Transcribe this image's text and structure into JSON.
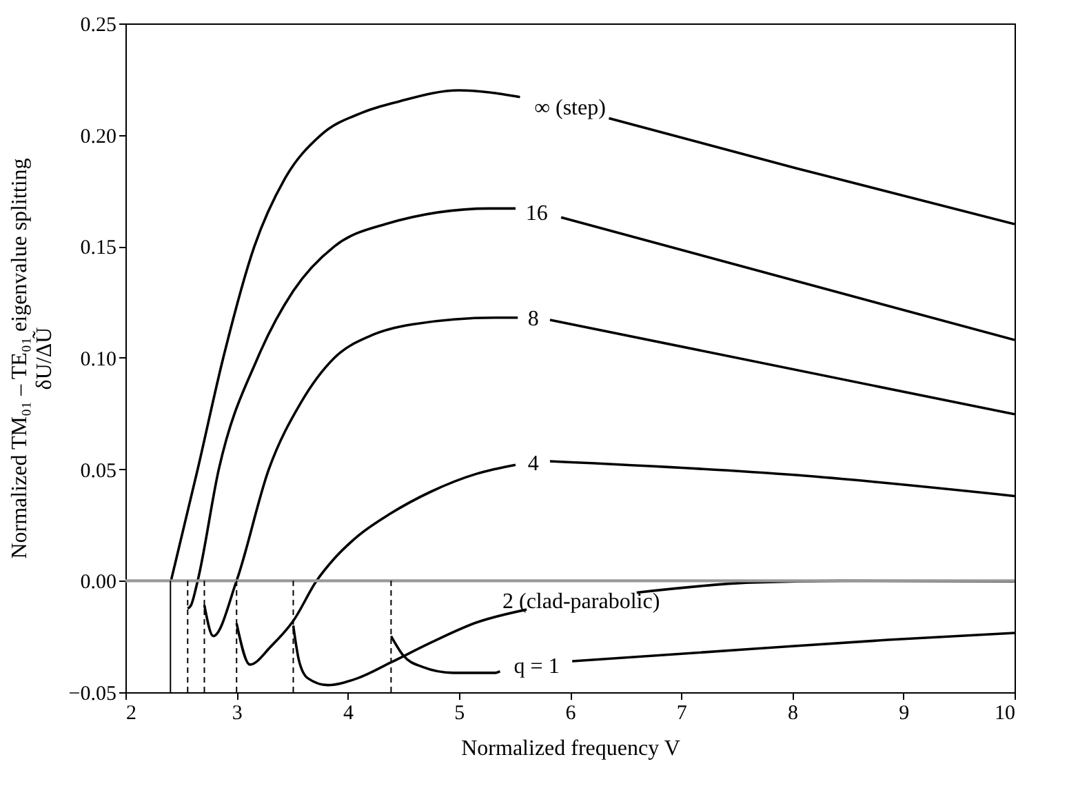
{
  "chart_data": {
    "type": "line",
    "xlabel": "Normalized frequency V",
    "ylabel": "Normalized  TM₀₁ – TE₀₁ eigenvalue splitting\nδU/ΔŨ",
    "xlim": [
      2,
      10
    ],
    "xticks": [
      2,
      3,
      4,
      5,
      6,
      7,
      8,
      9,
      10
    ],
    "ylim": [
      -0.05,
      0.25
    ],
    "yticks": [
      {
        "value": -0.05,
        "label": "−0.05"
      },
      {
        "value": 0,
        "label": "0.00"
      },
      0.05,
      {
        "value": 0.1,
        "label": "0.10"
      },
      0.15,
      {
        "value": 0.2,
        "label": "0.20"
      },
      0.25
    ],
    "grid": false,
    "line_style": "solid",
    "marker": "none",
    "series": [
      {
        "name": "∞ (step)",
        "color": "#000000",
        "x": [
          2.41,
          2.65,
          2.88,
          3.16,
          3.43,
          3.76,
          4.13,
          4.46,
          5.0,
          5.55,
          6.0,
          6.35,
          8.04,
          10
        ],
        "values": [
          0,
          0.05,
          0.1,
          0.15,
          0.18,
          0.2,
          0.21,
          0.215,
          0.22,
          0.217,
          null,
          0.2075,
          0.185,
          0.16
        ]
      },
      {
        "name": "16",
        "color": "#000000",
        "x": [
          2.56,
          2.59,
          2.65,
          2.84,
          3.19,
          3.51,
          3.88,
          4.34,
          5.28,
          5.51,
          5.7,
          5.92,
          10
        ],
        "values": [
          -0.0125,
          -0.011,
          0,
          0.05,
          0.1,
          0.13,
          0.15,
          0.16,
          0.167,
          0.167,
          null,
          0.163,
          0.108
        ]
      },
      {
        "name": "8",
        "color": "#000000",
        "x": [
          2.71,
          2.79,
          3.0,
          3.29,
          3.58,
          3.88,
          4.21,
          4.58,
          5.33,
          5.53,
          5.67,
          5.82,
          10
        ],
        "values": [
          -0.0109,
          -0.0248,
          0,
          0.05,
          0.08,
          0.1,
          0.11,
          0.115,
          0.118,
          0.118,
          null,
          0.117,
          0.0747
        ]
      },
      {
        "name": "4",
        "color": "#000000",
        "x": [
          3.0,
          3.12,
          3.31,
          3.51,
          3.72,
          3.88,
          4.09,
          4.38,
          4.75,
          5.16,
          5.51,
          5.67,
          5.82,
          8.04,
          10
        ],
        "values": [
          -0.0191,
          -0.0376,
          -0.0294,
          -0.018,
          0,
          0.01,
          0.02,
          0.03,
          0.04,
          0.048,
          0.052,
          null,
          0.0536,
          0.0474,
          0.038
        ]
      },
      {
        "name": "2 (clad-parabolic)",
        "color": "#000000",
        "x": [
          3.51,
          3.56,
          3.64,
          3.82,
          4.09,
          4.39,
          4.75,
          5.16,
          5.61,
          6.1,
          6.6,
          7.63,
          8.45,
          10
        ],
        "values": [
          -0.0201,
          -0.0355,
          -0.0437,
          -0.0468,
          -0.0437,
          -0.0366,
          -0.0277,
          -0.0187,
          -0.0129,
          null,
          -0.0053,
          -0.0008,
          0,
          -0.0003
        ]
      },
      {
        "name": "q = 1",
        "color": "#000000",
        "x": [
          4.39,
          4.5,
          4.67,
          4.95,
          5.33,
          5.37,
          5.7,
          6.02,
          7.63,
          8.86,
          10
        ],
        "values": [
          -0.0248,
          -0.0335,
          -0.0386,
          -0.0413,
          -0.0413,
          -0.0406,
          null,
          -0.0361,
          -0.0306,
          -0.0265,
          -0.0234
        ]
      }
    ],
    "ref_lines": [
      {
        "axis": "y",
        "value": 0,
        "color": "#999999",
        "line_style": "solid"
      },
      {
        "axis": "x",
        "value": 2.405,
        "color": "#000000",
        "line_style": "solid"
      },
      {
        "axis": "x",
        "value": 2.56,
        "color": "#000000",
        "line_style": "dashed"
      },
      {
        "axis": "x",
        "value": 2.71,
        "color": "#000000",
        "line_style": "dashed"
      },
      {
        "axis": "x",
        "value": 3.0,
        "color": "#000000",
        "line_style": "dashed"
      },
      {
        "axis": "x",
        "value": 3.51,
        "color": "#000000",
        "line_style": "dashed"
      },
      {
        "axis": "x",
        "value": 4.39,
        "color": "#000000",
        "line_style": "dashed"
      }
    ]
  }
}
